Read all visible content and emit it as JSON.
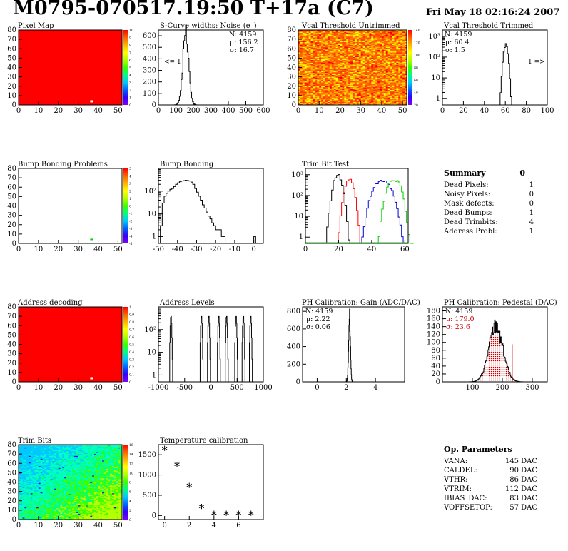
{
  "header": {
    "title": "M0795-070517.19:50 T+17a (C7)",
    "date": "Fri May 18 02:16:24 2007"
  },
  "colors": {
    "red": "#ff0000",
    "blue": "#0000cc",
    "green": "#00cc00",
    "black": "#000000",
    "stat_red": "#cc0000"
  },
  "summary": {
    "title": "Summary",
    "total": "0",
    "rows": [
      {
        "label": "Dead Pixels:",
        "value": "1"
      },
      {
        "label": "Noisy Pixels:",
        "value": "0"
      },
      {
        "label": "Mask defects:",
        "value": "0"
      },
      {
        "label": "Dead Bumps:",
        "value": "1"
      },
      {
        "label": "Dead Trimbits:",
        "value": "4"
      },
      {
        "label": "Address Probl:",
        "value": "1"
      }
    ]
  },
  "op_params": {
    "title": "Op. Parameters",
    "rows": [
      {
        "label": "VANA:",
        "value": "145 DAC"
      },
      {
        "label": "CALDEL:",
        "value": "90 DAC"
      },
      {
        "label": "VTHR:",
        "value": "86 DAC"
      },
      {
        "label": "VTRIM:",
        "value": "112 DAC"
      },
      {
        "label": "IBIAS_DAC:",
        "value": "83 DAC"
      },
      {
        "label": "VOFFSETOP:",
        "value": "57 DAC"
      }
    ]
  },
  "chart_data": [
    {
      "id": "pixel-map",
      "type": "heatmap",
      "title": "Pixel Map",
      "xlim": [
        0,
        52
      ],
      "ylim": [
        0,
        80
      ],
      "xticks": [
        0,
        10,
        20,
        30,
        40,
        50
      ],
      "yticks": [
        0,
        10,
        20,
        30,
        40,
        50,
        60,
        70,
        80
      ],
      "fill": "uniform-red",
      "z_range": [
        0,
        10
      ],
      "zticks": [
        "10",
        "9",
        "8",
        "7",
        "6",
        "5",
        "4",
        "3",
        "2",
        "1",
        "0"
      ],
      "dead_pixels": [
        {
          "x": 36,
          "y": 4
        }
      ]
    },
    {
      "id": "scurve-widths",
      "type": "bar",
      "title": "S-Curve widths: Noise (e⁻)",
      "xlim": [
        0,
        600
      ],
      "ylim": [
        0,
        650
      ],
      "xticks": [
        0,
        100,
        200,
        300,
        400,
        500,
        600
      ],
      "yticks": [
        0,
        100,
        200,
        300,
        400,
        500,
        600
      ],
      "log": false,
      "histogram": {
        "mean": 156.2,
        "sigma": 16.7,
        "peak": 610,
        "xmin": 80,
        "xmax": 300,
        "binwidth": 5
      },
      "stats": {
        "N": "N: 4159",
        "mean": "μ: 156.2",
        "sigma": "σ: 16.7"
      },
      "annotation": "<= 1"
    },
    {
      "id": "vcal-untrimmed",
      "type": "heatmap",
      "title": "Vcal Threshold Untrimmed",
      "xlim": [
        0,
        52
      ],
      "ylim": [
        0,
        80
      ],
      "xticks": [
        0,
        10,
        20,
        30,
        40,
        50
      ],
      "yticks": [
        0,
        10,
        20,
        30,
        40,
        50,
        60,
        70,
        80
      ],
      "fill": "noise-orange-yellow",
      "z_range": [
        0,
        140
      ],
      "zticks": [
        "140",
        "120",
        "100",
        "80",
        "60",
        "40",
        "20"
      ]
    },
    {
      "id": "vcal-trimmed",
      "type": "bar",
      "title": "Vcal Threshold Trimmed",
      "xlim": [
        0,
        100
      ],
      "ylim": [
        0.5,
        2000
      ],
      "xticks": [
        0,
        20,
        40,
        60,
        80,
        100
      ],
      "log": true,
      "yticks": [
        "1",
        "10",
        "10²",
        "10³"
      ],
      "histogram": {
        "mean": 60.4,
        "sigma": 1.5,
        "peak": 400,
        "xmin": 54,
        "xmax": 67,
        "binwidth": 1
      },
      "stats": {
        "N": "N: 4159",
        "mean": "μ: 60.4",
        "sigma": "σ:  1.5"
      },
      "annotation": "1 =>"
    },
    {
      "id": "bump-problems",
      "type": "heatmap",
      "title": "Bump Bonding Problems",
      "xlim": [
        0,
        52
      ],
      "ylim": [
        0,
        80
      ],
      "xticks": [
        0,
        10,
        20,
        30,
        40,
        50
      ],
      "yticks": [
        0,
        10,
        20,
        30,
        40,
        50,
        60,
        70,
        80
      ],
      "fill": "white",
      "z_range": [
        -5,
        5
      ],
      "zticks": [
        "5",
        "4",
        "3",
        "2",
        "1",
        "0",
        "-1",
        "-2",
        "-3",
        "-4",
        "-5"
      ],
      "dead_bumps": [
        {
          "x": 36,
          "y": 4
        }
      ]
    },
    {
      "id": "bump-bonding",
      "type": "bar",
      "title": "Bump Bonding",
      "xlim": [
        -50,
        5
      ],
      "ylim": [
        0.5,
        1000
      ],
      "xticks": [
        -50,
        -40,
        -30,
        -20,
        -10,
        0
      ],
      "log": true,
      "yticks": [
        "1",
        "10",
        "10²"
      ],
      "values": [
        {
          "x": -49,
          "y": 3
        },
        {
          "x": -48,
          "y": 30
        },
        {
          "x": -47,
          "y": 60
        },
        {
          "x": -46,
          "y": 80
        },
        {
          "x": -45,
          "y": 100
        },
        {
          "x": -44,
          "y": 120
        },
        {
          "x": -43,
          "y": 130
        },
        {
          "x": -42,
          "y": 160
        },
        {
          "x": -41,
          "y": 200
        },
        {
          "x": -40,
          "y": 230
        },
        {
          "x": -39,
          "y": 260
        },
        {
          "x": -38,
          "y": 280
        },
        {
          "x": -37,
          "y": 290
        },
        {
          "x": -36,
          "y": 300
        },
        {
          "x": -35,
          "y": 290
        },
        {
          "x": -34,
          "y": 280
        },
        {
          "x": -33,
          "y": 250
        },
        {
          "x": -32,
          "y": 200
        },
        {
          "x": -31,
          "y": 130
        },
        {
          "x": -30,
          "y": 90
        },
        {
          "x": -29,
          "y": 60
        },
        {
          "x": -28,
          "y": 40
        },
        {
          "x": -27,
          "y": 25
        },
        {
          "x": -26,
          "y": 18
        },
        {
          "x": -25,
          "y": 12
        },
        {
          "x": -24,
          "y": 8
        },
        {
          "x": -23,
          "y": 6
        },
        {
          "x": -22,
          "y": 4
        },
        {
          "x": -21,
          "y": 3
        },
        {
          "x": -20,
          "y": 2
        },
        {
          "x": -19,
          "y": 2
        },
        {
          "x": -18,
          "y": 2
        },
        {
          "x": -17,
          "y": 1
        },
        {
          "x": -16,
          "y": 1
        },
        {
          "x": 0,
          "y": 1
        }
      ]
    },
    {
      "id": "trim-bit-test",
      "type": "bar",
      "title": "Trim Bit Test",
      "xlim": [
        0,
        62
      ],
      "ylim": [
        0.5,
        2000
      ],
      "xticks": [
        0,
        20,
        40,
        60
      ],
      "log": true,
      "yticks": [
        "1",
        "10",
        "10²",
        "10³"
      ],
      "series": [
        {
          "color": "black",
          "mean": 19,
          "sigma": 1.8,
          "peak": 1000,
          "double": false
        },
        {
          "color": "red",
          "mean": 26,
          "sigma": 1.8,
          "peak": 700,
          "double": false
        },
        {
          "color": "blue",
          "mean": 46,
          "sigma": 4,
          "peak": 600,
          "double": true
        },
        {
          "color": "green",
          "mean": 53,
          "sigma": 3,
          "peak": 700,
          "double": true
        }
      ]
    },
    {
      "id": "address-decoding",
      "type": "heatmap",
      "title": "Address decoding",
      "xlim": [
        0,
        52
      ],
      "ylim": [
        0,
        80
      ],
      "xticks": [
        0,
        10,
        20,
        30,
        40,
        50
      ],
      "yticks": [
        0,
        10,
        20,
        30,
        40,
        50,
        60,
        70,
        80
      ],
      "fill": "uniform-red",
      "z_range": [
        0,
        1
      ],
      "zticks": [
        "1",
        "0.9",
        "0.8",
        "0.7",
        "0.6",
        "0.5",
        "0.4",
        "0.3",
        "0.2",
        "0.1",
        "0"
      ],
      "dead_pixels": [
        {
          "x": 36,
          "y": 4
        }
      ]
    },
    {
      "id": "address-levels",
      "type": "bar",
      "title": "Address Levels",
      "xlim": [
        -1000,
        1000
      ],
      "ylim": [
        0.5,
        1000
      ],
      "xticks": [
        -1000,
        -500,
        0,
        500,
        1000
      ],
      "log": true,
      "yticks": [
        "1",
        "10",
        "10²"
      ],
      "peaks": [
        -760,
        -180,
        -40,
        150,
        300,
        480,
        620,
        760
      ],
      "peak_height": 400
    },
    {
      "id": "ph-gain",
      "type": "bar",
      "title": "PH Calibration: Gain (ADC/DAC)",
      "xlim": [
        -1,
        6
      ],
      "ylim": [
        0,
        850
      ],
      "xticks": [
        0,
        2,
        4
      ],
      "yticks": [
        0,
        200,
        400,
        600,
        800
      ],
      "log": false,
      "histogram": {
        "mean": 2.22,
        "sigma": 0.06,
        "peak": 760,
        "xmin": 1.9,
        "xmax": 2.6,
        "binwidth": 0.02
      },
      "stats": {
        "N": "N: 4159",
        "mean": "μ: 2.22",
        "sigma": "σ: 0.06"
      }
    },
    {
      "id": "ph-pedestal",
      "type": "bar",
      "title": "PH Calibration: Pedestal (DAC)",
      "xlim": [
        0,
        350
      ],
      "ylim": [
        0,
        190
      ],
      "xticks": [
        100,
        200,
        300
      ],
      "yticks": [
        0,
        20,
        40,
        60,
        80,
        100,
        120,
        140,
        160,
        180
      ],
      "log": false,
      "histogram": {
        "mean": 179.0,
        "sigma": 23.6,
        "peak": 140,
        "xmin": 80,
        "xmax": 310,
        "binwidth": 2
      },
      "stats": {
        "N": "N: 4159",
        "mean": "μ: 179.0",
        "sigma": "σ: 23.6"
      },
      "cut_lines": [
        125,
        233
      ],
      "cut_height": 95
    },
    {
      "id": "trim-bits",
      "type": "heatmap",
      "title": "Trim Bits",
      "xlim": [
        0,
        52
      ],
      "ylim": [
        0,
        80
      ],
      "xticks": [
        0,
        10,
        20,
        30,
        40,
        50
      ],
      "yticks": [
        0,
        10,
        20,
        30,
        40,
        50,
        60,
        70,
        80
      ],
      "fill": "trim-gradient",
      "z_range": [
        0,
        16
      ],
      "zticks": [
        "16",
        "14",
        "12",
        "10",
        "8",
        "6",
        "4",
        "2",
        "0"
      ]
    },
    {
      "id": "temp-calibration",
      "type": "scatter",
      "title": "Temperature calibration",
      "xlim": [
        -0.5,
        8
      ],
      "ylim": [
        -100,
        1750
      ],
      "xticks": [
        0,
        2,
        4,
        6
      ],
      "yticks": [
        0,
        500,
        1000,
        1500
      ],
      "points": [
        {
          "x": 0,
          "y": 1600
        },
        {
          "x": 1,
          "y": 1200
        },
        {
          "x": 2,
          "y": 680
        },
        {
          "x": 3,
          "y": 160
        },
        {
          "x": 4,
          "y": 0
        },
        {
          "x": 5,
          "y": 0
        },
        {
          "x": 6,
          "y": 0
        },
        {
          "x": 7,
          "y": 0
        }
      ]
    }
  ]
}
